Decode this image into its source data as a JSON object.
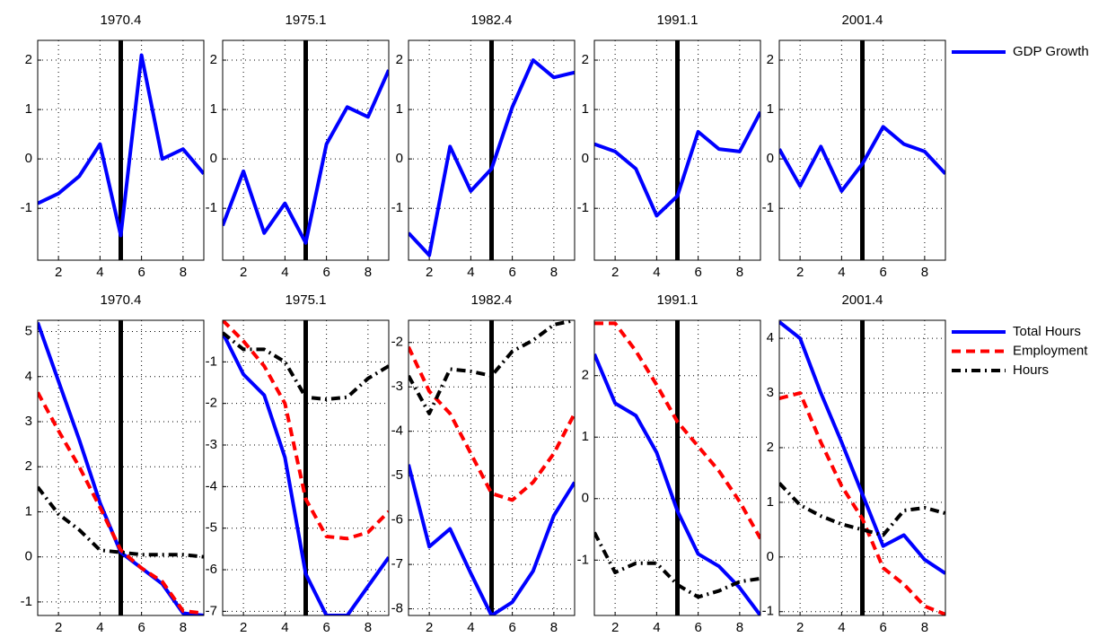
{
  "chart_data": [
    {
      "type": "line",
      "title": "1970.4",
      "x": [
        1,
        2,
        3,
        4,
        5,
        6,
        7,
        8,
        9
      ],
      "xlim": [
        1,
        9
      ],
      "xticks": [
        2,
        4,
        6,
        8
      ],
      "ylim": [
        -2.05,
        2.4
      ],
      "yticks": [
        -1,
        0,
        1,
        2
      ],
      "vline": 5,
      "grid": true,
      "series": [
        {
          "name": "GDP Growth",
          "color": "#0000ff",
          "linestyle": "solid",
          "values": [
            -0.9,
            -0.7,
            -0.35,
            0.3,
            -1.55,
            2.1,
            0.0,
            0.2,
            -0.3
          ]
        }
      ]
    },
    {
      "type": "line",
      "title": "1975.1",
      "x": [
        1,
        2,
        3,
        4,
        5,
        6,
        7,
        8,
        9
      ],
      "xlim": [
        1,
        9
      ],
      "xticks": [
        2,
        4,
        6,
        8
      ],
      "ylim": [
        -2.05,
        2.4
      ],
      "yticks": [
        -1,
        0,
        1,
        2
      ],
      "vline": 5,
      "grid": true,
      "series": [
        {
          "name": "GDP Growth",
          "color": "#0000ff",
          "linestyle": "solid",
          "values": [
            -1.35,
            -0.25,
            -1.5,
            -0.9,
            -1.7,
            0.3,
            1.05,
            0.85,
            1.8
          ]
        }
      ]
    },
    {
      "type": "line",
      "title": "1982.4",
      "x": [
        1,
        2,
        3,
        4,
        5,
        6,
        7,
        8,
        9
      ],
      "xlim": [
        1,
        9
      ],
      "xticks": [
        2,
        4,
        6,
        8
      ],
      "ylim": [
        -2.05,
        2.4
      ],
      "yticks": [
        -1,
        0,
        1,
        2
      ],
      "vline": 5,
      "grid": true,
      "series": [
        {
          "name": "GDP Growth",
          "color": "#0000ff",
          "linestyle": "solid",
          "values": [
            -1.5,
            -1.95,
            0.25,
            -0.65,
            -0.2,
            1.05,
            2.0,
            1.65,
            1.75
          ]
        }
      ]
    },
    {
      "type": "line",
      "title": "1991.1",
      "x": [
        1,
        2,
        3,
        4,
        5,
        6,
        7,
        8,
        9
      ],
      "xlim": [
        1,
        9
      ],
      "xticks": [
        2,
        4,
        6,
        8
      ],
      "ylim": [
        -2.05,
        2.4
      ],
      "yticks": [
        -1,
        0,
        1,
        2
      ],
      "vline": 5,
      "grid": true,
      "series": [
        {
          "name": "GDP Growth",
          "color": "#0000ff",
          "linestyle": "solid",
          "values": [
            0.3,
            0.15,
            -0.2,
            -1.15,
            -0.75,
            0.55,
            0.2,
            0.15,
            0.95
          ]
        }
      ]
    },
    {
      "type": "line",
      "title": "2001.4",
      "x": [
        1,
        2,
        3,
        4,
        5,
        6,
        7,
        8,
        9
      ],
      "xlim": [
        1,
        9
      ],
      "xticks": [
        2,
        4,
        6,
        8
      ],
      "ylim": [
        -2.05,
        2.4
      ],
      "yticks": [
        -1,
        0,
        1,
        2
      ],
      "vline": 5,
      "grid": true,
      "legend": "right",
      "series": [
        {
          "name": "GDP Growth",
          "color": "#0000ff",
          "linestyle": "solid",
          "values": [
            0.2,
            -0.55,
            0.25,
            -0.65,
            -0.1,
            0.65,
            0.3,
            0.15,
            -0.3
          ]
        }
      ]
    },
    {
      "type": "line",
      "title": "1970.4",
      "x": [
        1,
        2,
        3,
        4,
        5,
        6,
        7,
        8,
        9
      ],
      "xlim": [
        1,
        9
      ],
      "xticks": [
        2,
        4,
        6,
        8
      ],
      "ylim": [
        -1.3,
        5.25
      ],
      "yticks": [
        -1,
        0,
        1,
        2,
        3,
        4,
        5
      ],
      "vline": 5,
      "grid": true,
      "series": [
        {
          "name": "Total Hours",
          "color": "#0000ff",
          "linestyle": "solid",
          "values": [
            5.2,
            3.9,
            2.6,
            1.2,
            0.1,
            -0.25,
            -0.6,
            -1.25,
            -1.3
          ]
        },
        {
          "name": "Employment",
          "color": "#ff0000",
          "linestyle": "dashed",
          "values": [
            3.65,
            2.8,
            2.0,
            1.1,
            0.15,
            -0.25,
            -0.55,
            -1.2,
            -1.25
          ]
        },
        {
          "name": "Hours",
          "color": "#000000",
          "linestyle": "dashdot",
          "values": [
            1.55,
            0.95,
            0.6,
            0.15,
            0.1,
            0.05,
            0.05,
            0.05,
            0.0
          ]
        }
      ]
    },
    {
      "type": "line",
      "title": "1975.1",
      "x": [
        1,
        2,
        3,
        4,
        5,
        6,
        7,
        8,
        9
      ],
      "xlim": [
        1,
        9
      ],
      "xticks": [
        2,
        4,
        6,
        8
      ],
      "ylim": [
        -7.1,
        0
      ],
      "yticks": [
        -7,
        -6,
        -5,
        -4,
        -3,
        -2,
        -1
      ],
      "vline": 5,
      "grid": true,
      "series": [
        {
          "name": "Total Hours",
          "color": "#0000ff",
          "linestyle": "solid",
          "values": [
            -0.3,
            -1.3,
            -1.8,
            -3.3,
            -6.1,
            -7.1,
            -7.1,
            -6.4,
            -5.7
          ]
        },
        {
          "name": "Employment",
          "color": "#ff0000",
          "linestyle": "dashed",
          "values": [
            0.0,
            -0.5,
            -1.1,
            -2.0,
            -4.3,
            -5.2,
            -5.25,
            -5.1,
            -4.6
          ]
        },
        {
          "name": "Hours",
          "color": "#000000",
          "linestyle": "dashdot",
          "values": [
            -0.3,
            -0.7,
            -0.7,
            -1.0,
            -1.85,
            -1.9,
            -1.85,
            -1.4,
            -1.1
          ]
        }
      ]
    },
    {
      "type": "line",
      "title": "1982.4",
      "x": [
        1,
        2,
        3,
        4,
        5,
        6,
        7,
        8,
        9
      ],
      "xlim": [
        1,
        9
      ],
      "xticks": [
        2,
        4,
        6,
        8
      ],
      "ylim": [
        -8.15,
        -1.5
      ],
      "yticks": [
        -8,
        -7,
        -6,
        -5,
        -4,
        -3,
        -2
      ],
      "vline": 5,
      "grid": true,
      "series": [
        {
          "name": "Total Hours",
          "color": "#0000ff",
          "linestyle": "solid",
          "values": [
            -4.75,
            -6.6,
            -6.2,
            -7.2,
            -8.15,
            -7.85,
            -7.15,
            -5.9,
            -5.15
          ]
        },
        {
          "name": "Employment",
          "color": "#ff0000",
          "linestyle": "dashed",
          "values": [
            -2.1,
            -3.1,
            -3.6,
            -4.5,
            -5.4,
            -5.55,
            -5.15,
            -4.5,
            -3.6
          ]
        },
        {
          "name": "Hours",
          "color": "#000000",
          "linestyle": "dashdot",
          "values": [
            -2.75,
            -3.6,
            -2.6,
            -2.65,
            -2.75,
            -2.2,
            -1.95,
            -1.6,
            -1.5
          ]
        }
      ]
    },
    {
      "type": "line",
      "title": "1991.1",
      "x": [
        1,
        2,
        3,
        4,
        5,
        6,
        7,
        8,
        9
      ],
      "xlim": [
        1,
        9
      ],
      "xticks": [
        2,
        4,
        6,
        8
      ],
      "ylim": [
        -1.9,
        2.9
      ],
      "yticks": [
        -1,
        0,
        1,
        2
      ],
      "vline": 5,
      "grid": true,
      "series": [
        {
          "name": "Total Hours",
          "color": "#0000ff",
          "linestyle": "solid",
          "values": [
            2.35,
            1.55,
            1.35,
            0.75,
            -0.2,
            -0.9,
            -1.1,
            -1.45,
            -1.9
          ]
        },
        {
          "name": "Employment",
          "color": "#ff0000",
          "linestyle": "dashed",
          "values": [
            2.85,
            2.85,
            2.4,
            1.85,
            1.25,
            0.85,
            0.45,
            -0.05,
            -0.65
          ]
        },
        {
          "name": "Hours",
          "color": "#000000",
          "linestyle": "dashdot",
          "values": [
            -0.55,
            -1.2,
            -1.05,
            -1.05,
            -1.4,
            -1.6,
            -1.5,
            -1.35,
            -1.3
          ]
        }
      ]
    },
    {
      "type": "line",
      "title": "2001.4",
      "x": [
        1,
        2,
        3,
        4,
        5,
        6,
        7,
        8,
        9
      ],
      "xlim": [
        1,
        9
      ],
      "xticks": [
        2,
        4,
        6,
        8
      ],
      "ylim": [
        -1.07,
        4.33
      ],
      "yticks": [
        -1,
        0,
        1,
        2,
        3,
        4
      ],
      "vline": 5,
      "grid": true,
      "legend": "right",
      "series": [
        {
          "name": "Total Hours",
          "color": "#0000ff",
          "linestyle": "solid",
          "values": [
            4.3,
            4.0,
            3.0,
            2.1,
            1.15,
            0.2,
            0.4,
            -0.05,
            -0.3
          ]
        },
        {
          "name": "Employment",
          "color": "#ff0000",
          "linestyle": "dashed",
          "values": [
            2.9,
            3.0,
            2.1,
            1.3,
            0.7,
            -0.2,
            -0.5,
            -0.9,
            -1.05
          ]
        },
        {
          "name": "Hours",
          "color": "#000000",
          "linestyle": "dashdot",
          "values": [
            1.35,
            0.95,
            0.75,
            0.6,
            0.5,
            0.4,
            0.85,
            0.9,
            0.8
          ]
        }
      ]
    }
  ]
}
